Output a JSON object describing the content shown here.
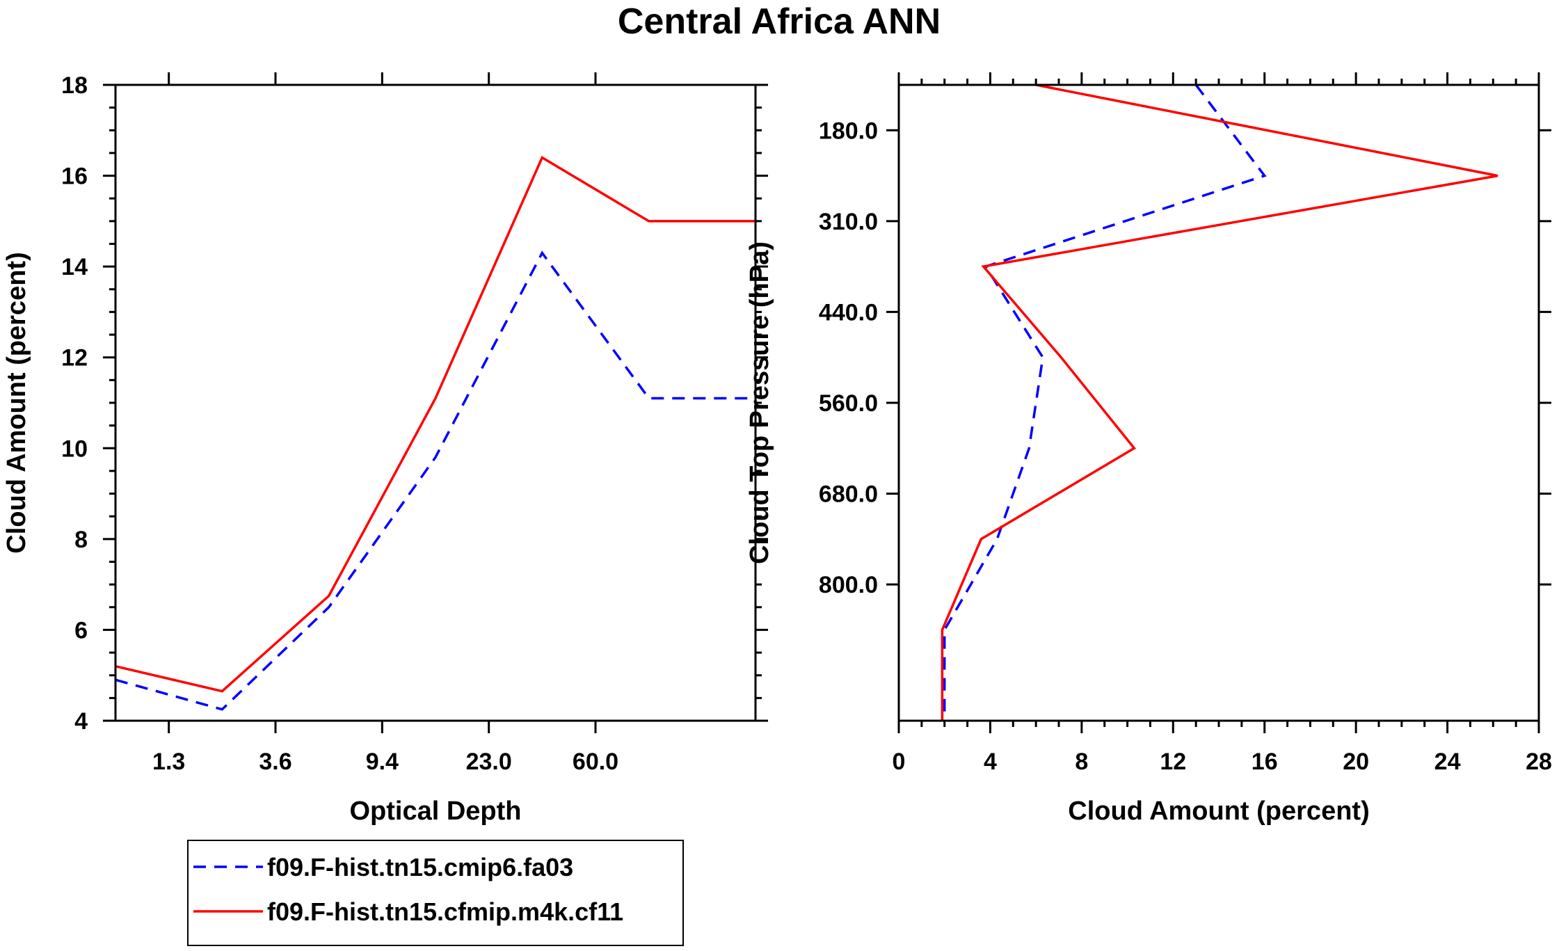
{
  "figure": {
    "title": "Central Africa ANN"
  },
  "colors": {
    "series1": "#0000ff",
    "series2": "#ff0000",
    "axis": "#000000",
    "background": "#ffffff"
  },
  "legend": {
    "placement": "bottom-left",
    "items": [
      {
        "label": "f09.F-hist.tn15.cmip6.fa03",
        "style": "dashed",
        "color": "#0000ff"
      },
      {
        "label": "f09.F-hist.tn15.cfmip.m4k.cf11",
        "style": "solid",
        "color": "#ff0000"
      }
    ]
  },
  "chart_data": [
    {
      "type": "line",
      "xlabel": "Optical Depth",
      "ylabel": "Cloud Amount (percent)",
      "x_bins": [
        1,
        2,
        3,
        4,
        5,
        6
      ],
      "xlim": [
        0.5,
        6.5
      ],
      "x_ticks": [
        {
          "pos": 1,
          "label": "1.3"
        },
        {
          "pos": 2,
          "label": "3.6"
        },
        {
          "pos": 3,
          "label": "9.4"
        },
        {
          "pos": 4,
          "label": "23.0"
        },
        {
          "pos": 5,
          "label": "60.0"
        }
      ],
      "ylim": [
        4,
        18
      ],
      "y_ticks": [
        "4",
        "6",
        "8",
        "10",
        "12",
        "14",
        "16",
        "18"
      ],
      "series": [
        {
          "name": "f09.F-hist.tn15.cmip6.fa03",
          "x": [
            0.5,
            1.5,
            2.5,
            3.5,
            4.5,
            5.5,
            6.5
          ],
          "values": [
            4.9,
            4.25,
            6.5,
            9.8,
            14.3,
            11.1,
            11.1
          ]
        },
        {
          "name": "f09.F-hist.tn15.cfmip.m4k.cf11",
          "x": [
            0.5,
            1.5,
            2.5,
            3.5,
            4.5,
            5.5,
            6.5
          ],
          "values": [
            5.2,
            4.65,
            6.75,
            11.1,
            16.4,
            15.0,
            15.0
          ]
        }
      ]
    },
    {
      "type": "line",
      "orientation": "horizontal-profile",
      "xlabel": "Cloud Amount (percent)",
      "ylabel": "Cloud Top Pressure (hPa)",
      "xlim": [
        0,
        28
      ],
      "x_ticks": [
        "0",
        "4",
        "8",
        "12",
        "16",
        "20",
        "24",
        "28"
      ],
      "ylim": [
        0.5,
        7.5
      ],
      "y_ticks": [
        {
          "pos": 1,
          "label": "180.0"
        },
        {
          "pos": 2,
          "label": "310.0"
        },
        {
          "pos": 3,
          "label": "440.0"
        },
        {
          "pos": 4,
          "label": "560.0"
        },
        {
          "pos": 5,
          "label": "680.0"
        },
        {
          "pos": 6,
          "label": "800.0"
        }
      ],
      "series": [
        {
          "name": "f09.F-hist.tn15.cmip6.fa03",
          "levels": [
            0.5,
            1.5,
            2.5,
            3.5,
            4.5,
            5.5,
            6.5,
            7.5
          ],
          "values": [
            13.0,
            16.0,
            3.8,
            6.3,
            5.7,
            4.3,
            2.0,
            2.0
          ]
        },
        {
          "name": "f09.F-hist.tn15.cfmip.m4k.cf11",
          "levels": [
            0.5,
            1.5,
            2.5,
            3.5,
            4.5,
            5.5,
            6.5,
            7.5
          ],
          "values": [
            6.0,
            26.2,
            3.7,
            7.1,
            10.3,
            3.6,
            1.9,
            1.9
          ]
        }
      ]
    }
  ]
}
